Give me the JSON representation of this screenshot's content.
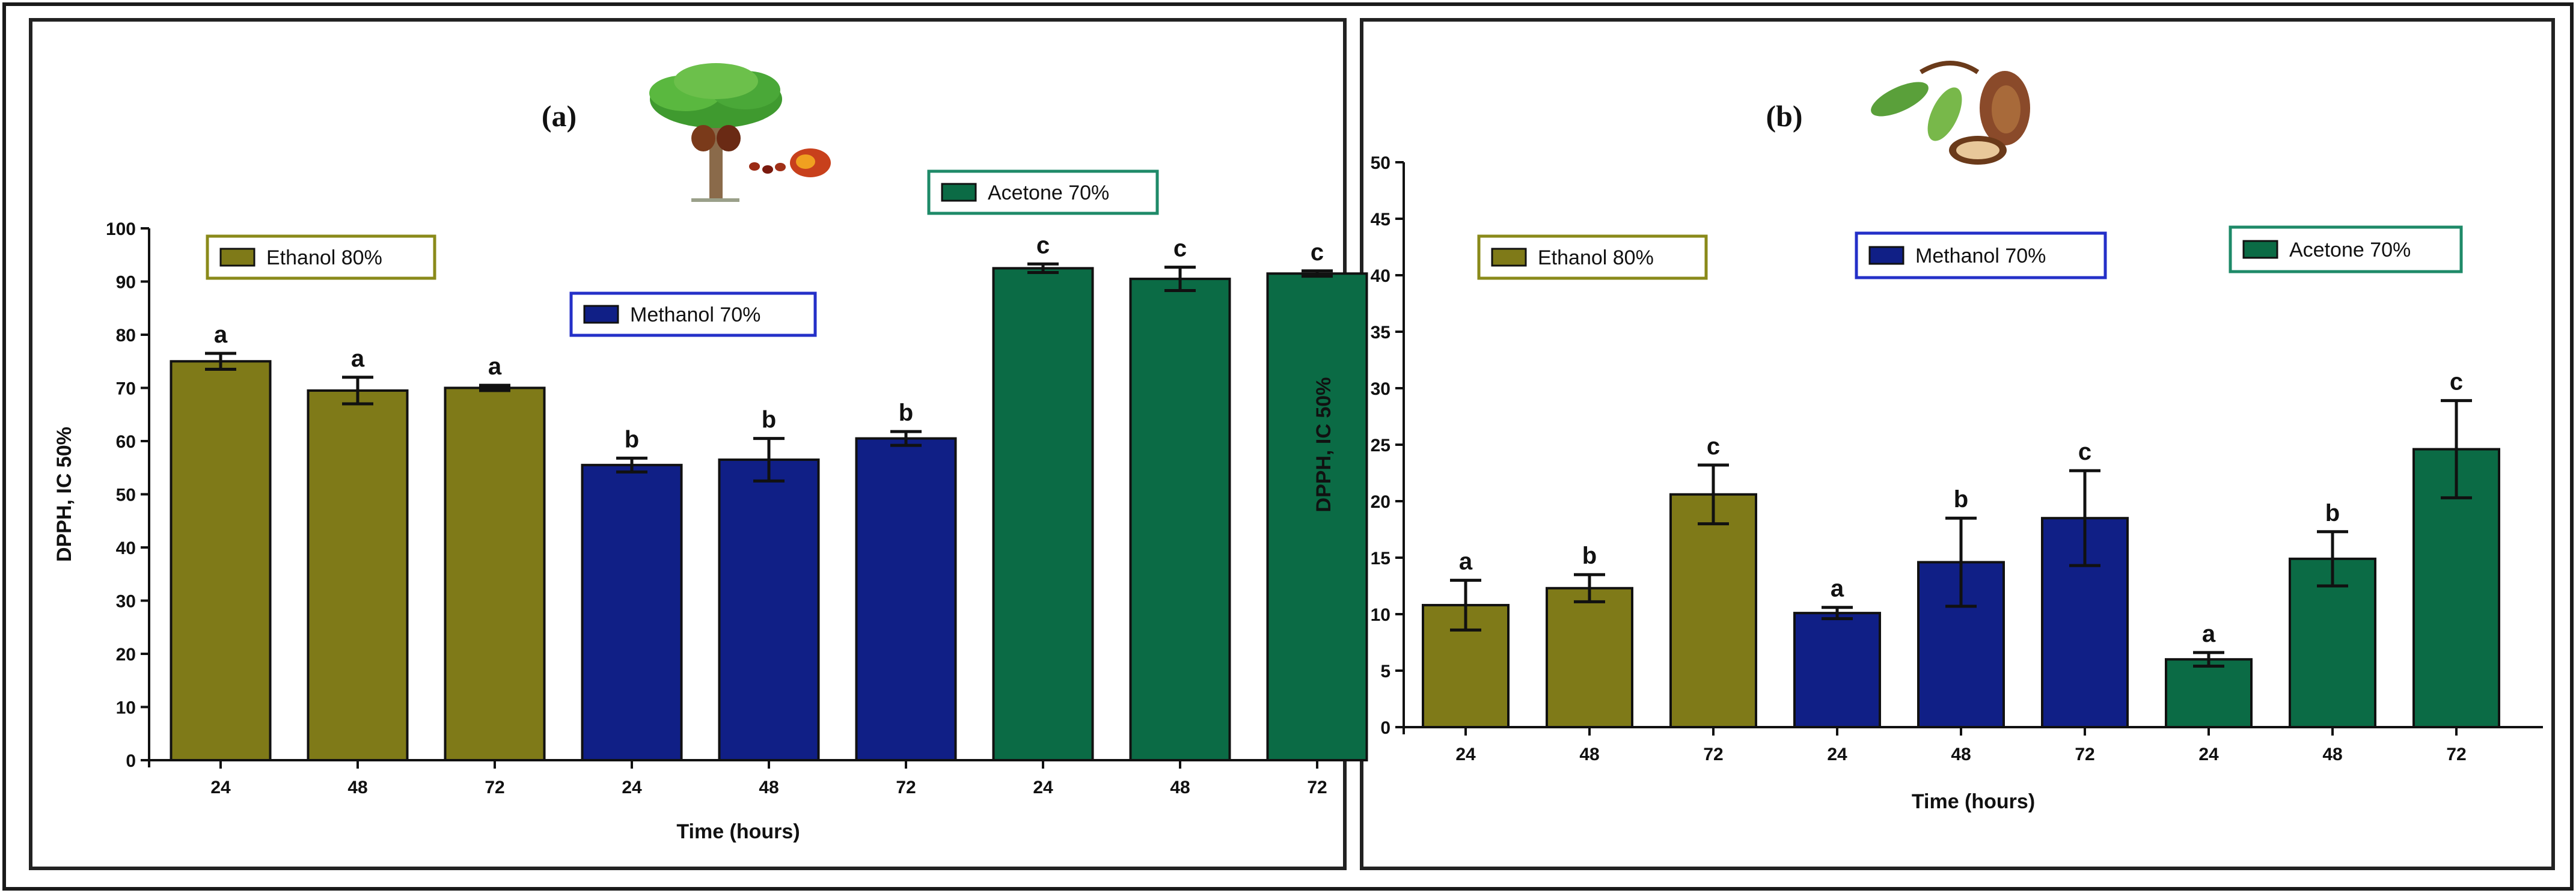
{
  "colors": {
    "ethanol": "#7f7a18",
    "methanol": "#101f86",
    "acetone": "#0b6b45",
    "ethanol_legend_border": "#8a8a1a",
    "methanol_legend_border": "#2430c8",
    "acetone_legend_border": "#1e8a68"
  },
  "icons": {
    "panel_a": "oil-palm-tree-icon",
    "panel_b": "cocoa-pod-leaves-icon"
  },
  "chart_data": [
    {
      "type": "bar",
      "panel_label": "(a)",
      "xlabel": "Time (hours)",
      "ylabel": "DPPH, IC 50%",
      "categories": [
        "24",
        "48",
        "72",
        "24",
        "48",
        "72",
        "24",
        "48",
        "72"
      ],
      "bar_groups": [
        "ethanol",
        "ethanol",
        "ethanol",
        "methanol",
        "methanol",
        "methanol",
        "acetone",
        "acetone",
        "acetone"
      ],
      "values": [
        75,
        69.5,
        70,
        55.5,
        56.5,
        60.5,
        92.5,
        90.5,
        91.5
      ],
      "errors": [
        1.5,
        2.5,
        0.5,
        1.3,
        4.0,
        1.3,
        0.8,
        2.2,
        0.5
      ],
      "significance": [
        "a",
        "a",
        "a",
        "b",
        "b",
        "b",
        "c",
        "c",
        "c"
      ],
      "ylim": [
        0,
        100
      ],
      "yticks": [
        "0",
        "10",
        "20",
        "30",
        "40",
        "50",
        "60",
        "70",
        "80",
        "90",
        "100"
      ],
      "legend": [
        {
          "key": "ethanol",
          "label": "Ethanol 80%"
        },
        {
          "key": "methanol",
          "label": "Methanol 70%"
        },
        {
          "key": "acetone",
          "label": "Acetone 70%"
        }
      ]
    },
    {
      "type": "bar",
      "panel_label": "(b)",
      "xlabel": "Time (hours)",
      "ylabel": "DPPH, IC 50%",
      "categories": [
        "24",
        "48",
        "72",
        "24",
        "48",
        "72",
        "24",
        "48",
        "72"
      ],
      "bar_groups": [
        "ethanol",
        "ethanol",
        "ethanol",
        "methanol",
        "methanol",
        "methanol",
        "acetone",
        "acetone",
        "acetone"
      ],
      "values": [
        10.8,
        12.3,
        20.6,
        10.1,
        14.6,
        18.5,
        6.0,
        14.9,
        24.6
      ],
      "errors": [
        2.2,
        1.2,
        2.6,
        0.5,
        3.9,
        4.2,
        0.6,
        2.4,
        4.3
      ],
      "significance": [
        "a",
        "b",
        "c",
        "a",
        "b",
        "c",
        "a",
        "b",
        "c"
      ],
      "ylim": [
        0,
        50
      ],
      "yticks": [
        "0",
        "5",
        "10",
        "15",
        "20",
        "25",
        "30",
        "35",
        "40",
        "45",
        "50"
      ],
      "legend": [
        {
          "key": "ethanol",
          "label": "Ethanol 80%"
        },
        {
          "key": "methanol",
          "label": "Methanol 70%"
        },
        {
          "key": "acetone",
          "label": "Acetone 70%"
        }
      ]
    }
  ]
}
